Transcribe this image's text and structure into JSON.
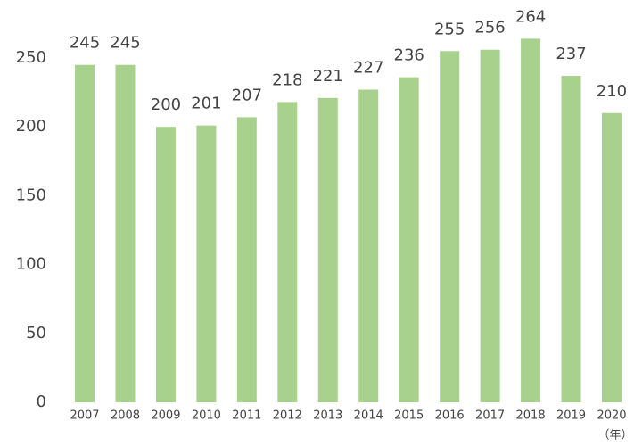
{
  "chart_data": {
    "type": "bar",
    "categories": [
      "2007",
      "2008",
      "2009",
      "2010",
      "2011",
      "2012",
      "2013",
      "2014",
      "2015",
      "2016",
      "2017",
      "2018",
      "2019",
      "2020"
    ],
    "values": [
      245,
      245,
      200,
      201,
      207,
      218,
      221,
      227,
      236,
      255,
      256,
      264,
      237,
      210
    ],
    "color": "#a9d18e",
    "xlabel": "（年）",
    "ylim": [
      0,
      250
    ],
    "yticks": [
      0,
      50,
      100,
      150,
      200,
      250
    ],
    "grid": false
  }
}
